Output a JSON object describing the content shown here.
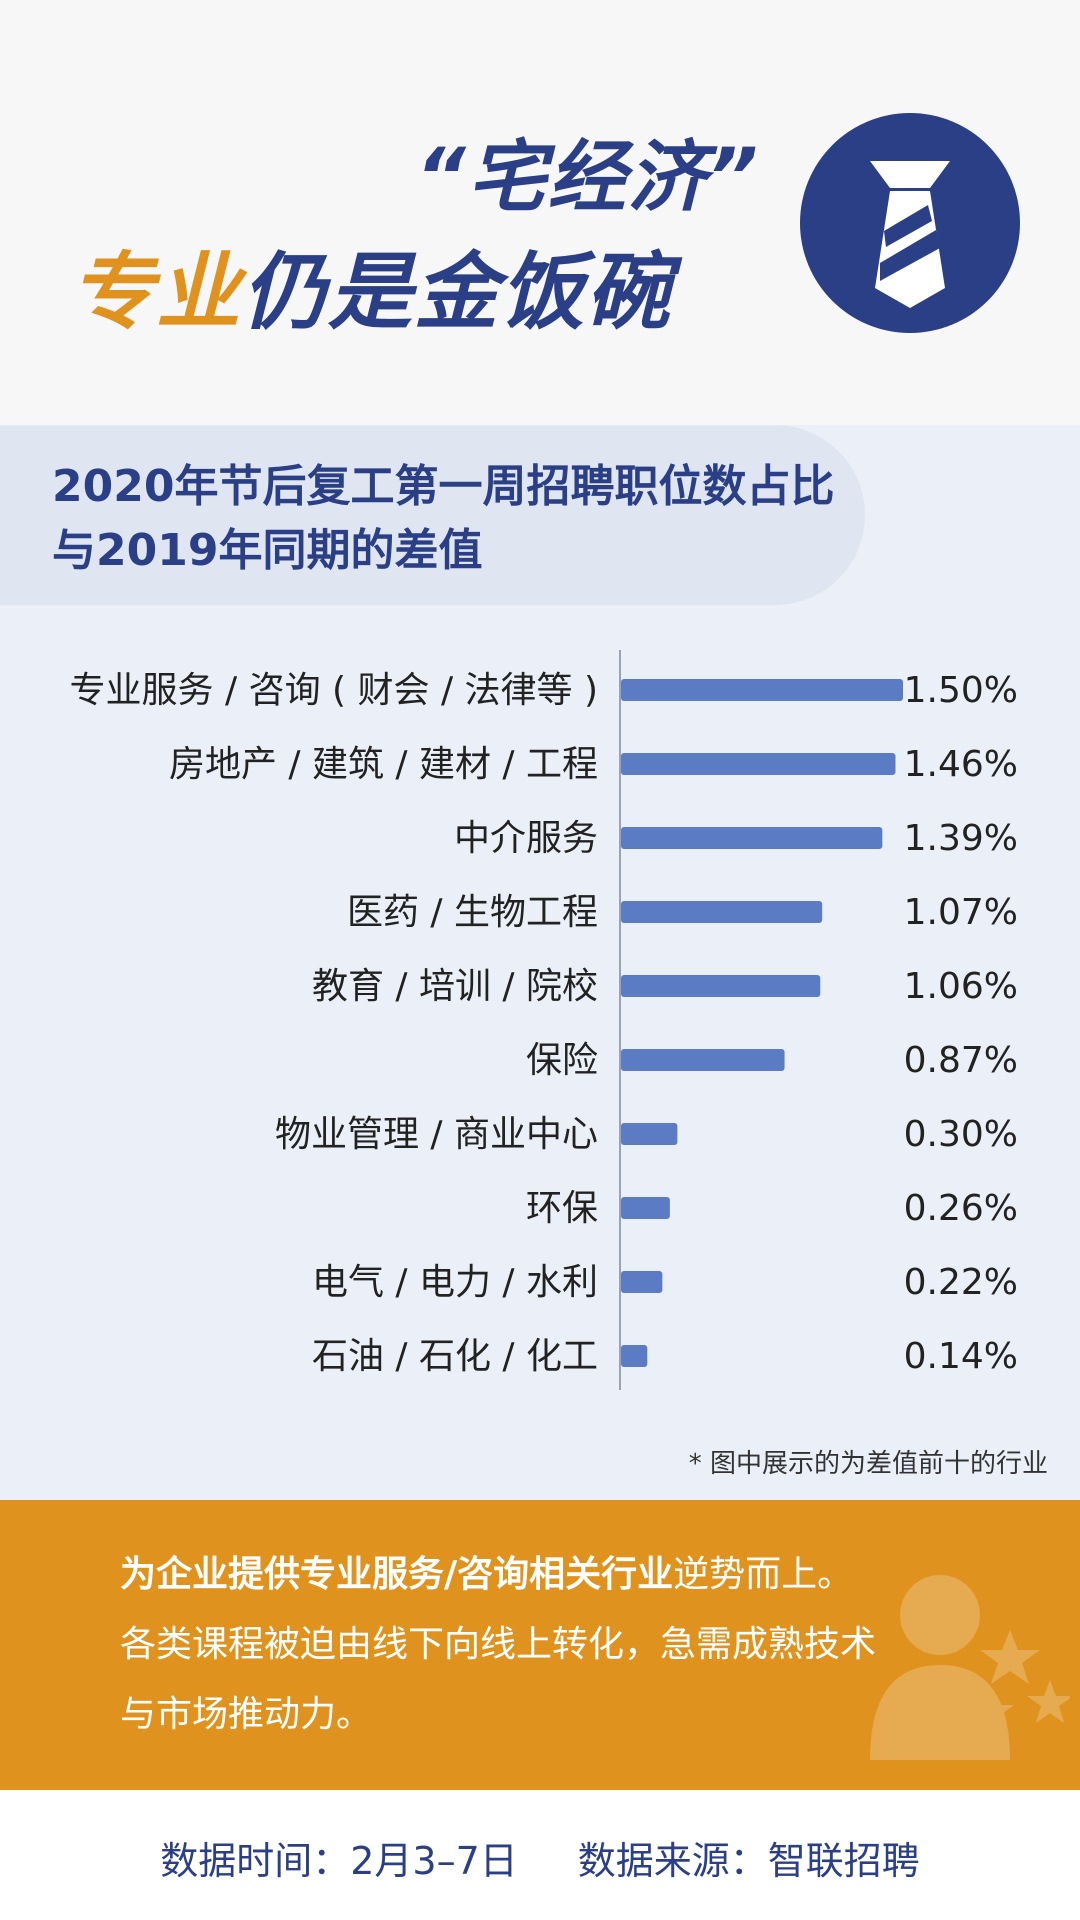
{
  "header": {
    "title_line1": "“宅经济”",
    "title_accent": "专业",
    "title_main": "仍是金饭碗",
    "icon": "necktie-icon",
    "colors": {
      "navy": "#2a3f86",
      "orange": "#e0921f"
    }
  },
  "chart_data": {
    "type": "bar",
    "orientation": "horizontal",
    "title": "2020年节后复工第一周招聘职位数占比与2019年同期的差值",
    "categories": [
      "专业服务 / 咨询 ( 财会 / 法律等 )",
      "房地产 / 建筑 / 建材 / 工程",
      "中介服务",
      "医药 / 生物工程",
      "教育 / 培训 / 院校",
      "保险",
      "物业管理 / 商业中心",
      "环保",
      "电气 / 电力 / 水利",
      "石油 / 石化 / 化工"
    ],
    "values": [
      1.5,
      1.46,
      1.39,
      1.07,
      1.06,
      0.87,
      0.3,
      0.26,
      0.22,
      0.14
    ],
    "value_labels": [
      "1.50%",
      "1.46%",
      "1.39%",
      "1.07%",
      "1.06%",
      "0.87%",
      "0.30%",
      "0.26%",
      "0.22%",
      "0.14%"
    ],
    "unit": "%",
    "xlim": [
      0,
      1.5
    ],
    "bar_color": "#5b7bc4",
    "grid": false
  },
  "footnote": "* 图中展示的为差值前十的行业",
  "conclusion": {
    "bold": "为企业提供专业服务/咨询相关行业",
    "rest": "逆势而上。",
    "line2": "各类课程被迫由线下向线上转化，急需成熟技术",
    "line3": "与市场推动力。",
    "icon": "person-stars-icon"
  },
  "footer": {
    "time": "数据时间：2月3–7日",
    "source": "数据来源：智联招聘"
  }
}
